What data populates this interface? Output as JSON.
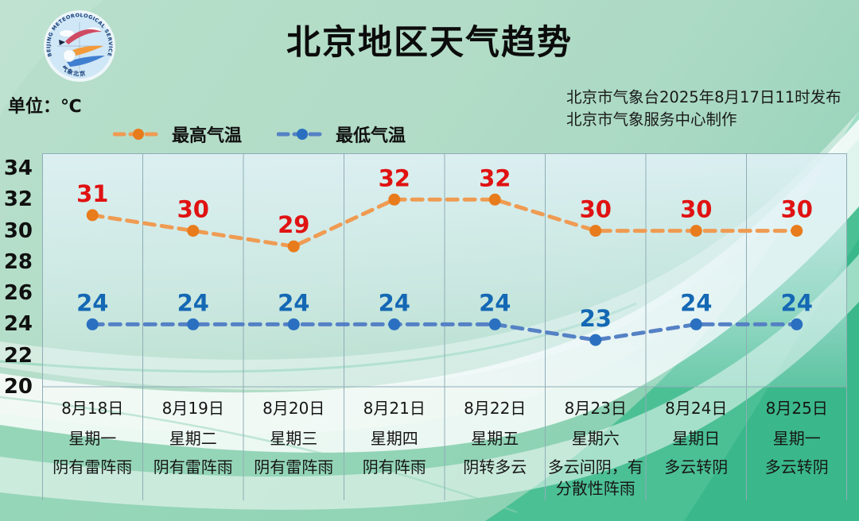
{
  "header": {
    "title": "北京地区天气趋势",
    "unit_label": "单位：℃",
    "issued_line1": "北京市气象台2025年8月17日11时发布",
    "issued_line2": "北京市气象服务中心制作",
    "logo": {
      "arc_text": "BEIJING METEOROLOGICAL SERVICE",
      "bottom_text": "气象北京"
    }
  },
  "colors": {
    "grid": "#8fadb6",
    "high_point": "#e87c1c",
    "high_line": "#ef9b52",
    "high_label": "#e01212",
    "low_point": "#2b70c0",
    "low_line": "#5581c5",
    "low_label": "#1468b4"
  },
  "chart_data": {
    "type": "line",
    "title": "北京地区天气趋势",
    "unit": "℃",
    "categories": [
      "8月18日",
      "8月19日",
      "8月20日",
      "8月21日",
      "8月22日",
      "8月23日",
      "8月24日",
      "8月25日"
    ],
    "weekdays": [
      "星期一",
      "星期二",
      "星期三",
      "星期四",
      "星期五",
      "星期六",
      "星期日",
      "星期一"
    ],
    "weather": [
      "阴有雷阵雨",
      "阴有雷阵雨",
      "阴有雷阵雨",
      "阴有阵雨",
      "阴转多云",
      "多云间阴，有分散性阵雨",
      "多云转阴",
      "多云转阴"
    ],
    "series": [
      {
        "name": "最高气温",
        "values": [
          31,
          30,
          29,
          32,
          32,
          30,
          30,
          30
        ],
        "point_color": "#e87c1c",
        "line_color": "#ef9b52",
        "label_color": "#e01212"
      },
      {
        "name": "最低气温",
        "values": [
          24,
          24,
          24,
          24,
          24,
          23,
          24,
          24
        ],
        "point_color": "#2b70c0",
        "line_color": "#5581c5",
        "label_color": "#1468b4"
      }
    ],
    "ylim": [
      20,
      34
    ],
    "yticks": [
      34,
      32,
      30,
      28,
      26,
      24,
      22,
      20
    ],
    "grid": "vertical-only",
    "legend_position": "top-left"
  }
}
